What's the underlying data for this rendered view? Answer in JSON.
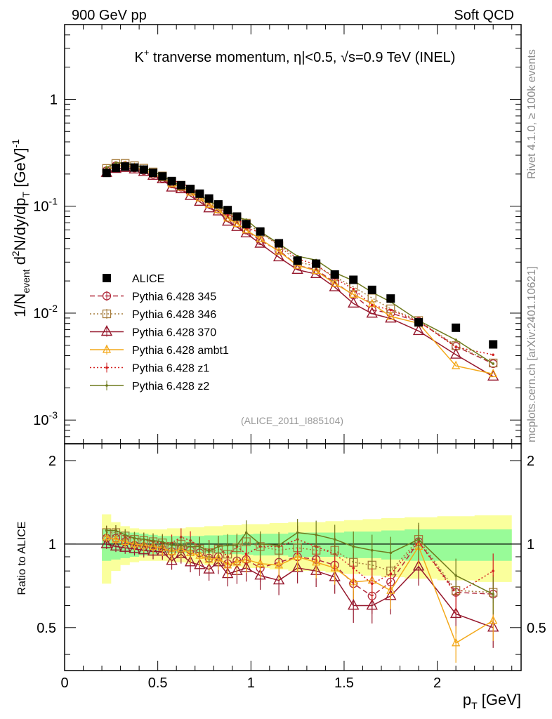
{
  "header": {
    "left": "900 GeV pp",
    "right": "Soft QCD"
  },
  "plot_title": {
    "pre": "K",
    "sup": "+",
    "mid": " tranverse momentum, ",
    "eta": "η",
    "cut": "|<0.5, ",
    "sqrt": "√",
    "energy": "s=0.9 TeV (INEL)"
  },
  "side_labels": {
    "rivet": "Rivet 4.1.0, ≥ 100k events",
    "mcplots": "mcplots.cern.ch [arXiv:2401.10621]"
  },
  "analysis_tag": "(ALICE_2011_I885104)",
  "axes": {
    "ylabel_main": "1/N_event d²N/dy/dp_T [GeV]⁻¹",
    "ylabel_main_parts": {
      "a": "1/N",
      "b": "event",
      "c": " d",
      "d": "2",
      "e": "N/dy/dp",
      "f": "T",
      "g": " [GeV]",
      "h": "-1"
    },
    "ylabel_ratio": "Ratio to ALICE",
    "xlabel_parts": {
      "a": "p",
      "b": "T",
      "c": " [GeV]"
    },
    "main_ticks": [
      "10",
      "10",
      "1",
      "10"
    ],
    "main_tick_labels": [
      {
        "base": "10",
        "exp": "-3",
        "value": 0.001
      },
      {
        "base": "10",
        "exp": "-2",
        "value": 0.01
      },
      {
        "base": "10",
        "exp": "-1",
        "value": 0.1
      },
      {
        "base": "1",
        "exp": "",
        "value": 1
      }
    ],
    "ratio_tick_labels": [
      "0.5",
      "1",
      "2"
    ],
    "x_tick_labels": [
      "0",
      "0.5",
      "1",
      "1.5",
      "2"
    ]
  },
  "colors": {
    "alice": "#000000",
    "p345": "#b22a3c",
    "p346": "#a67c3c",
    "p370": "#96182d",
    "ambt1": "#f3a81a",
    "z1": "#d21f1f",
    "z2": "#6f7a1d",
    "band_inner": "#98fb98",
    "band_outer": "#faff9c"
  },
  "chart_data": {
    "type": "line",
    "title": "K+ tranverse momentum, |eta|<0.5, sqrt(s)=0.9 TeV (INEL)",
    "xlabel": "p_T [GeV]",
    "ylabel": "1/N_event d2N/dy/dp_T [GeV]^-1",
    "xlim": [
      0,
      2.45
    ],
    "ylim_main": [
      0.0006,
      5
    ],
    "ylim_ratio": [
      0.35,
      2.3
    ],
    "yscale_main": "log",
    "yscale_ratio": "log",
    "x": [
      0.225,
      0.275,
      0.325,
      0.375,
      0.425,
      0.475,
      0.525,
      0.575,
      0.625,
      0.675,
      0.725,
      0.775,
      0.825,
      0.875,
      0.925,
      0.975,
      1.05,
      1.15,
      1.25,
      1.35,
      1.45,
      1.55,
      1.65,
      1.75,
      1.9,
      2.1,
      2.3
    ],
    "legend": [
      "ALICE",
      "Pythia 6.428 345",
      "Pythia 6.428 346",
      "Pythia 6.428 370",
      "Pythia 6.428 ambt1",
      "Pythia 6.428 z1",
      "Pythia 6.428 z2"
    ],
    "alice": [
      0.205,
      0.228,
      0.235,
      0.23,
      0.22,
      0.205,
      0.19,
      0.172,
      0.157,
      0.145,
      0.131,
      0.118,
      0.104,
      0.092,
      0.08,
      0.068,
      0.058,
      0.045,
      0.031,
      0.029,
      0.023,
      0.0205,
      0.0165,
      0.0137,
      0.0082,
      0.0073,
      0.0051
    ],
    "band_inner": [
      0.13,
      0.12,
      0.11,
      0.1,
      0.09,
      0.08,
      0.07,
      0.07,
      0.07,
      0.07,
      0.07,
      0.075,
      0.075,
      0.08,
      0.08,
      0.085,
      0.09,
      0.09,
      0.1,
      0.1,
      0.1,
      0.11,
      0.11,
      0.12,
      0.13,
      0.13,
      0.13
    ],
    "band_outer": [
      0.28,
      0.2,
      0.16,
      0.14,
      0.13,
      0.13,
      0.13,
      0.14,
      0.14,
      0.15,
      0.15,
      0.16,
      0.16,
      0.17,
      0.17,
      0.18,
      0.18,
      0.19,
      0.2,
      0.2,
      0.21,
      0.22,
      0.23,
      0.24,
      0.25,
      0.26,
      0.27
    ],
    "series": [
      {
        "key": "p345",
        "name": "Pythia 6.428 345",
        "marker": "circle",
        "dash": "7,4",
        "ratio": [
          1.05,
          1.05,
          1.02,
          0.99,
          0.98,
          0.97,
          0.96,
          0.94,
          0.96,
          0.95,
          0.93,
          0.89,
          0.9,
          0.85,
          0.87,
          0.88,
          0.82,
          0.86,
          0.9,
          0.88,
          0.84,
          0.72,
          0.65,
          0.73,
          1.02,
          0.67,
          0.66
        ]
      },
      {
        "key": "p346",
        "name": "Pythia 6.428 346",
        "marker": "square",
        "dash": "2,3",
        "ratio": [
          1.1,
          1.1,
          1.07,
          1.04,
          1.03,
          1.02,
          1.01,
          0.98,
          1.0,
          0.98,
          0.96,
          0.93,
          0.96,
          0.92,
          0.97,
          1.02,
          0.98,
          0.95,
          0.97,
          0.95,
          0.95,
          0.86,
          0.84,
          0.8,
          1.04,
          0.68,
          0.67
        ]
      },
      {
        "key": "p370",
        "name": "Pythia 6.428 370",
        "marker": "triangle",
        "dash": "",
        "ratio": [
          1.0,
          0.98,
          0.97,
          0.96,
          0.95,
          0.94,
          0.94,
          0.87,
          0.92,
          0.86,
          0.84,
          0.81,
          0.86,
          0.78,
          0.8,
          0.82,
          0.77,
          0.74,
          0.82,
          0.8,
          0.76,
          0.6,
          0.6,
          0.65,
          0.83,
          0.56,
          0.5
        ]
      },
      {
        "key": "ambt1",
        "name": "Pythia 6.428 ambt1",
        "marker": "triangle-sm",
        "dash": "",
        "ratio": [
          1.06,
          1.04,
          1.02,
          1.0,
          0.99,
          0.98,
          0.97,
          0.94,
          0.96,
          0.93,
          0.91,
          0.88,
          0.89,
          0.84,
          0.86,
          0.88,
          0.85,
          0.84,
          0.9,
          0.86,
          0.82,
          0.73,
          0.74,
          0.68,
          0.98,
          0.44,
          0.53
        ]
      },
      {
        "key": "z1",
        "name": "Pythia 6.428 z1",
        "marker": "dot",
        "dash": "2,3",
        "ratio": [
          1.12,
          1.12,
          1.06,
          1.05,
          1.04,
          1.02,
          1.01,
          1.01,
          1.06,
          1.03,
          0.98,
          0.95,
          0.98,
          0.9,
          0.98,
          0.92,
          0.98,
          0.98,
          1.04,
          0.98,
          0.92,
          0.82,
          0.72,
          0.78,
          1.02,
          0.66,
          0.8
        ]
      },
      {
        "key": "z2",
        "name": "Pythia 6.428 z2",
        "marker": "dot",
        "dash": "",
        "ratio": [
          1.12,
          1.12,
          1.08,
          1.05,
          1.04,
          1.03,
          1.02,
          0.99,
          0.99,
          0.98,
          0.98,
          0.94,
          0.98,
          0.99,
          0.99,
          1.1,
          1.0,
          0.99,
          1.1,
          1.08,
          1.04,
          0.98,
          0.95,
          0.93,
          1.04,
          0.77,
          0.66
        ]
      }
    ]
  }
}
